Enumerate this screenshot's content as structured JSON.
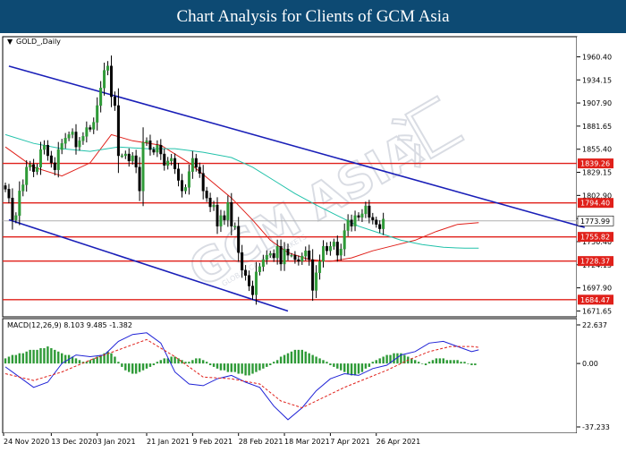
{
  "header": {
    "title": "Chart Analysis for Clients of GCM Asia"
  },
  "watermark": {
    "text": "GCM ASIA",
    "subtext": "GLOBAL CAPITAL MARKETS",
    "cn_text": "汇"
  },
  "chart_data": [
    {
      "type": "candlestick",
      "symbol_label": "GOLD_,Daily",
      "y_ticks": [
        1960.4,
        1934.15,
        1907.9,
        1881.65,
        1855.4,
        1829.15,
        1802.9,
        1776.65,
        1750.4,
        1724.15,
        1697.9,
        1671.65
      ],
      "ylim": [
        1667,
        1970
      ],
      "last_price": 1773.99,
      "horizontal_levels": [
        1839.26,
        1794.4,
        1755.82,
        1728.37,
        1684.47
      ],
      "x_labels": [
        "24 Nov 2020",
        "13 Dec 2020",
        "3 Jan 2021",
        "21 Jan 2021",
        "9 Feb 2021",
        "28 Feb 2021",
        "18 Mar 2021",
        "7 Apr 2021",
        "26 Apr 2021"
      ],
      "closes": [
        1810,
        1800,
        1775,
        1780,
        1808,
        1815,
        1835,
        1838,
        1830,
        1835,
        1855,
        1860,
        1848,
        1840,
        1832,
        1855,
        1862,
        1868,
        1872,
        1875,
        1858,
        1865,
        1870,
        1880,
        1878,
        1886,
        1905,
        1925,
        1945,
        1950,
        1915,
        1905,
        1848,
        1848,
        1850,
        1842,
        1848,
        1835,
        1808,
        1863,
        1865,
        1855,
        1852,
        1860,
        1850,
        1837,
        1842,
        1845,
        1833,
        1820,
        1808,
        1812,
        1830,
        1845,
        1835,
        1828,
        1808,
        1800,
        1790,
        1792,
        1768,
        1780,
        1775,
        1795,
        1768,
        1768,
        1738,
        1718,
        1712,
        1700,
        1690,
        1716,
        1722,
        1730,
        1735,
        1737,
        1732,
        1745,
        1725,
        1742,
        1735,
        1735,
        1730,
        1728,
        1734,
        1740,
        1730,
        1695,
        1715,
        1728,
        1745,
        1740,
        1745,
        1750,
        1735,
        1742,
        1763,
        1775,
        1768,
        1780,
        1778,
        1782,
        1791,
        1778,
        1775,
        1770,
        1765,
        1776
      ],
      "trend_channel_upper": [
        [
          1,
          1949.8
        ],
        [
          164,
          1766.5
        ]
      ],
      "trend_channel_lower": [
        [
          1,
          1775.3
        ],
        [
          80,
          1671.6
        ]
      ],
      "series": [
        {
          "name": "red-ma",
          "color": "#e0201a",
          "values": [
            [
              0,
              1858
            ],
            [
              8,
              1835
            ],
            [
              16,
              1825
            ],
            [
              24,
              1840
            ],
            [
              30,
              1872
            ],
            [
              36,
              1865
            ],
            [
              44,
              1860
            ],
            [
              52,
              1840
            ],
            [
              58,
              1820
            ],
            [
              64,
              1800
            ],
            [
              70,
              1775
            ],
            [
              75,
              1752
            ],
            [
              80,
              1738
            ],
            [
              86,
              1730
            ],
            [
              92,
              1728
            ],
            [
              98,
              1732
            ],
            [
              104,
              1740
            ],
            [
              110,
              1746
            ],
            [
              116,
              1752
            ],
            [
              122,
              1762
            ],
            [
              128,
              1770
            ],
            [
              134,
              1772
            ]
          ]
        },
        {
          "name": "green-ma",
          "color": "#22c2aa",
          "values": [
            [
              0,
              1872
            ],
            [
              8,
              1862
            ],
            [
              16,
              1856
            ],
            [
              24,
              1853
            ],
            [
              32,
              1858
            ],
            [
              40,
              1856
            ],
            [
              48,
              1856
            ],
            [
              56,
              1852
            ],
            [
              64,
              1846
            ],
            [
              70,
              1835
            ],
            [
              76,
              1820
            ],
            [
              82,
              1805
            ],
            [
              88,
              1792
            ],
            [
              94,
              1780
            ],
            [
              100,
              1768
            ],
            [
              106,
              1760
            ],
            [
              112,
              1752
            ],
            [
              118,
              1747
            ],
            [
              124,
              1744
            ],
            [
              130,
              1743
            ],
            [
              134,
              1743
            ]
          ]
        }
      ]
    },
    {
      "type": "macd",
      "title": "MACD(12,26,9) 8.103 9.485 -1.382",
      "y_ticks": [
        22.637,
        0.0,
        -37.233
      ],
      "ylim": [
        -37.233,
        22.637
      ],
      "histogram": [
        3,
        4,
        5,
        5,
        6,
        6,
        7,
        8,
        8,
        8,
        9,
        9,
        10,
        9,
        8,
        7,
        6,
        5,
        5,
        4,
        3,
        2,
        1,
        1,
        2,
        3,
        4,
        5,
        6,
        7,
        6,
        4,
        1,
        -2,
        -4,
        -5,
        -6,
        -6,
        -5,
        -4,
        -3,
        -2,
        -1,
        1,
        2,
        3,
        3,
        4,
        4,
        3,
        2,
        1,
        1,
        2,
        3,
        3,
        2,
        1,
        -1,
        -2,
        -3,
        -4,
        -4,
        -5,
        -5,
        -5,
        -6,
        -6,
        -7,
        -7,
        -6,
        -5,
        -4,
        -3,
        -2,
        -1,
        1,
        2,
        4,
        5,
        6,
        7,
        8,
        8,
        8,
        7,
        6,
        5,
        4,
        3,
        2,
        1,
        -1,
        -2,
        -3,
        -4,
        -5,
        -6,
        -7,
        -7,
        -6,
        -5,
        -3,
        -2,
        1,
        2,
        3,
        4,
        5,
        5,
        6,
        6,
        6,
        5,
        4,
        3,
        2,
        1,
        0,
        -1,
        1,
        2,
        3,
        3,
        3,
        2,
        2,
        2,
        2,
        1,
        1,
        0,
        -1,
        -1
      ],
      "series": [
        {
          "name": "macd-line",
          "color": "#1f22d6",
          "values": [
            [
              0,
              -2
            ],
            [
              4,
              -8
            ],
            [
              8,
              -14
            ],
            [
              12,
              -11
            ],
            [
              16,
              0
            ],
            [
              20,
              5
            ],
            [
              24,
              4
            ],
            [
              28,
              5
            ],
            [
              32,
              13
            ],
            [
              36,
              17
            ],
            [
              40,
              18
            ],
            [
              44,
              12
            ],
            [
              48,
              -5
            ],
            [
              52,
              -12
            ],
            [
              56,
              -13
            ],
            [
              60,
              -9
            ],
            [
              64,
              -7
            ],
            [
              68,
              -11
            ],
            [
              72,
              -14
            ],
            [
              76,
              -25
            ],
            [
              80,
              -33
            ],
            [
              84,
              -26
            ],
            [
              88,
              -16
            ],
            [
              92,
              -9
            ],
            [
              96,
              -6
            ],
            [
              100,
              -7
            ],
            [
              104,
              -3
            ],
            [
              108,
              -1
            ],
            [
              112,
              5
            ],
            [
              116,
              7
            ],
            [
              120,
              12
            ],
            [
              124,
              13
            ],
            [
              128,
              10
            ],
            [
              132,
              7
            ],
            [
              134,
              8
            ]
          ]
        },
        {
          "name": "signal-line",
          "color": "#e0201a",
          "values": [
            [
              0,
              -6
            ],
            [
              8,
              -10
            ],
            [
              16,
              -5
            ],
            [
              24,
              2
            ],
            [
              32,
              8
            ],
            [
              40,
              14
            ],
            [
              48,
              4
            ],
            [
              56,
              -8
            ],
            [
              64,
              -9
            ],
            [
              72,
              -12
            ],
            [
              78,
              -22
            ],
            [
              84,
              -26
            ],
            [
              90,
              -20
            ],
            [
              96,
              -14
            ],
            [
              102,
              -9
            ],
            [
              108,
              -4
            ],
            [
              114,
              2
            ],
            [
              120,
              7
            ],
            [
              126,
              10
            ],
            [
              132,
              10
            ],
            [
              134,
              9.5
            ]
          ]
        }
      ]
    }
  ]
}
